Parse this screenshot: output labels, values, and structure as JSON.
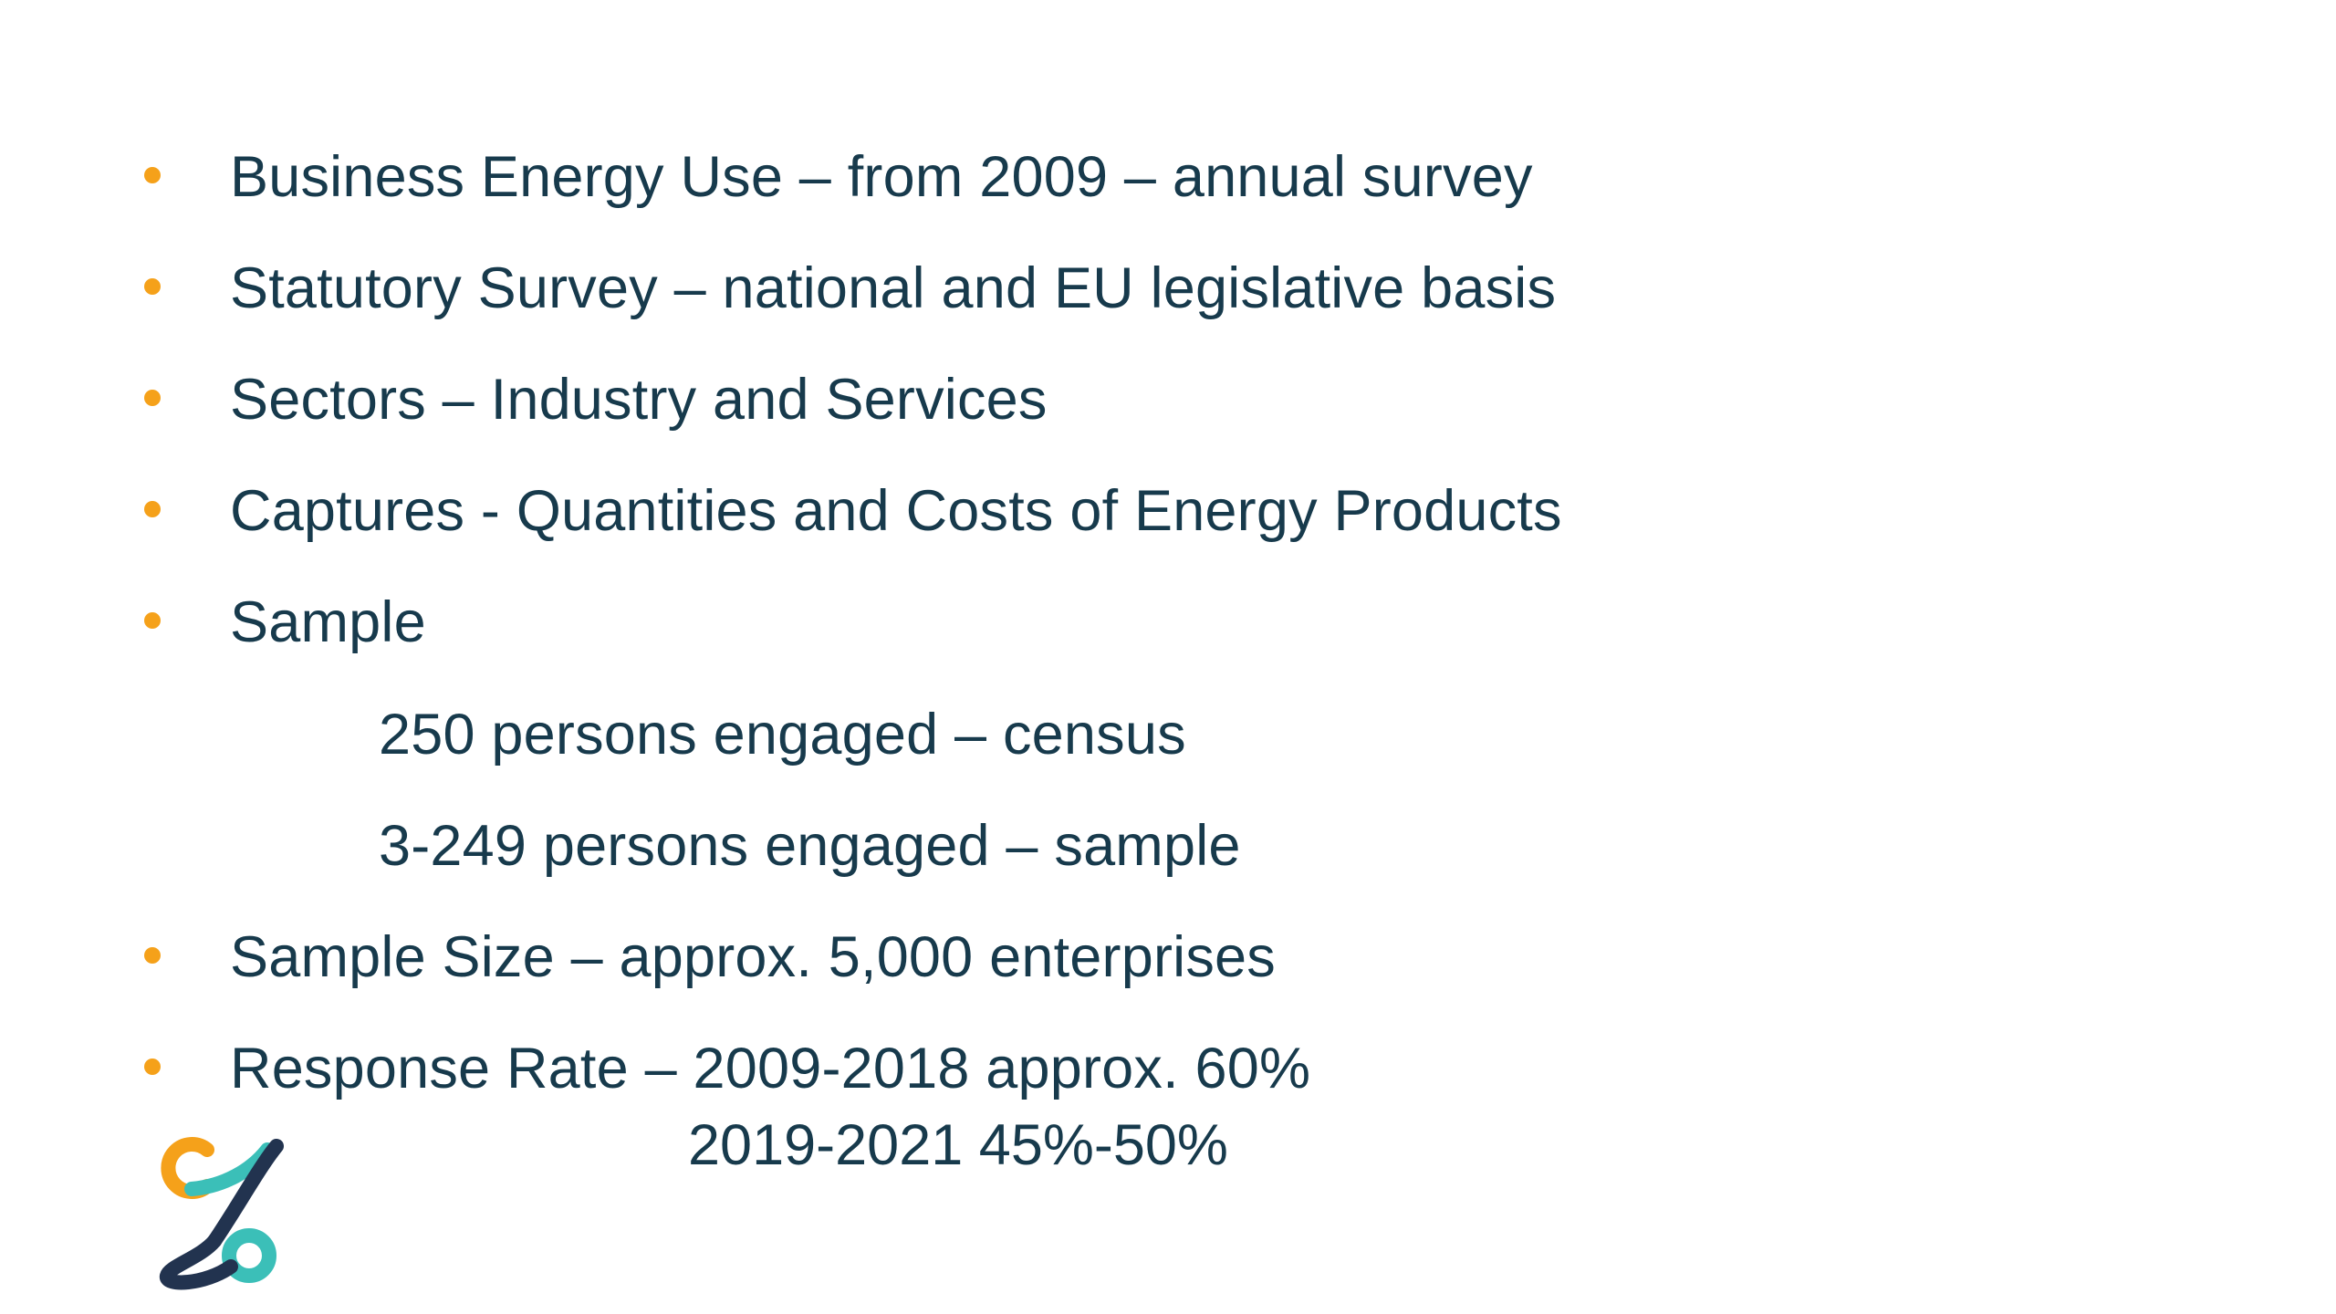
{
  "slide": {
    "bullets": [
      {
        "text": "Business Energy Use – from 2009 – annual survey"
      },
      {
        "text": "Statutory Survey – national and EU legislative basis"
      },
      {
        "text": "Sectors – Industry and Services"
      },
      {
        "text": "Captures - Quantities and Costs of Energy Products"
      },
      {
        "text": "Sample"
      }
    ],
    "sub_items": [
      {
        "text": "250 persons engaged – census"
      },
      {
        "text": "3-249 persons engaged – sample"
      }
    ],
    "bullets_after": [
      {
        "text": "Sample Size – approx. 5,000 enterprises"
      },
      {
        "text": "Response Rate – 2009-2018 approx. 60%"
      }
    ],
    "response_rate_continuation": "2019-2021 45%-50%"
  },
  "colors": {
    "text": "#173a4c",
    "bullet": "#f5a11a",
    "logo_orange": "#f5a11a",
    "logo_teal": "#3bbfb8",
    "logo_navy": "#22334f"
  },
  "logo": {
    "icon": "cso-logo-icon"
  }
}
